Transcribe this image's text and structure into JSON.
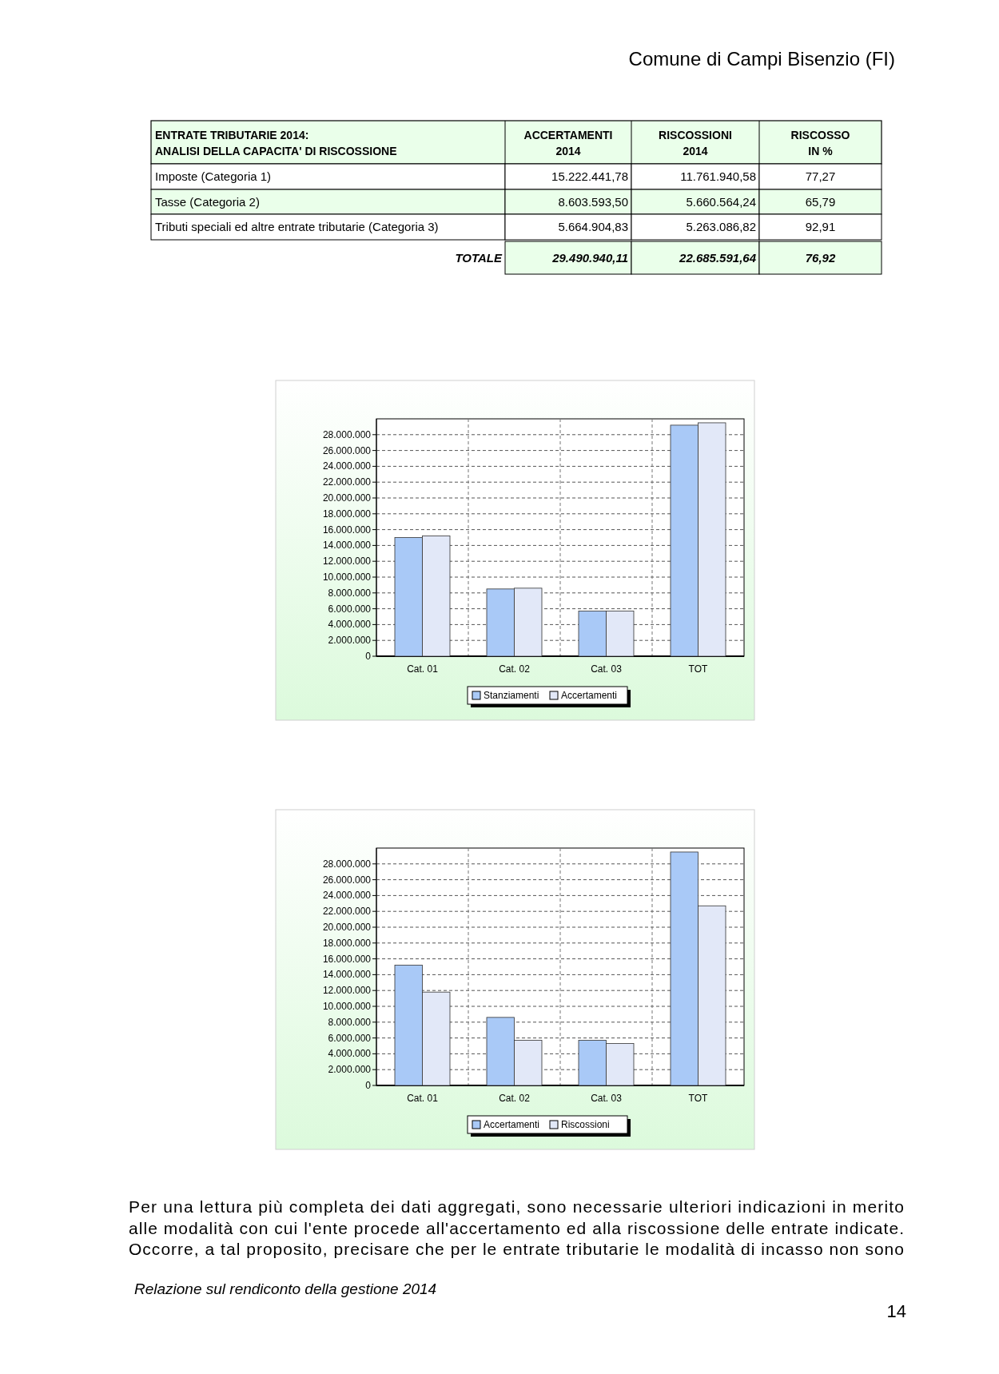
{
  "chart_data": [
    {
      "type": "other",
      "title": "ENTRATE  TRIBUTARIE 2014:\nANALISI DELLA CAPACITA' DI RISCOSSIONE",
      "categories": [
        "ACCERTAMENTI\n2014",
        "RISCOSSIONI\n2014",
        "RISCOSSO\nIN %"
      ],
      "y_categories": [
        "Imposte (Categoria 1)",
        "Tasse (Categoria 2)",
        "Tributi speciali ed altre entrate tributarie (Categoria 3)",
        "TOTALE"
      ],
      "cell_labels": [
        [
          "15.222.441,78",
          "11.761.940,58",
          "77,27"
        ],
        [
          "8.603.593,50",
          "5.660.564,24",
          "65,79"
        ],
        [
          "5.664.904,83",
          "5.263.086,82",
          "92,91"
        ],
        [
          "29.490.940,11",
          "22.685.591,64",
          "76,92"
        ]
      ],
      "annotations": [
        "Comune di Campi Bisenzio (FI)",
        "Per una lettura più completa dei dati aggregati, sono necessarie ulteriori indicazioni in merito",
        "alle modalità con cui l'ente procede all'accertamento ed alla riscossione delle entrate indicate.",
        "Occorre, a tal proposito, precisare che per le entrate tributarie le modalità di incasso non sono",
        "Relazione sul rendiconto della gestione 2014",
        "14"
      ]
    },
    {
      "type": "bar",
      "categories": [
        "Cat. 01",
        "Cat. 02",
        "Cat. 03",
        "TOT"
      ],
      "ylim": [
        0,
        30000000
      ],
      "yticks": [
        0,
        {
          "value": 2000000,
          "label": "2.000.000"
        },
        {
          "value": 4000000,
          "label": "4.000.000"
        },
        {
          "value": 6000000,
          "label": "6.000.000"
        },
        {
          "value": 8000000,
          "label": "8.000.000"
        },
        {
          "value": 10000000,
          "label": "10.000.000"
        },
        {
          "value": 12000000,
          "label": "12.000.000"
        },
        {
          "value": 14000000,
          "label": "14.000.000"
        },
        {
          "value": 16000000,
          "label": "16.000.000"
        },
        {
          "value": 18000000,
          "label": "18.000.000"
        },
        {
          "value": 20000000,
          "label": "20.000.000"
        },
        {
          "value": 22000000,
          "label": "22.000.000"
        },
        {
          "value": 24000000,
          "label": "24.000.000"
        },
        {
          "value": 26000000,
          "label": "26.000.000"
        },
        {
          "value": 28000000,
          "label": "28.000.000"
        }
      ],
      "grid": true,
      "legend": "bottom",
      "series": [
        {
          "name": "Stanziamenti",
          "color": "#a9c9f7",
          "values": [
            15000000,
            8500000,
            5700000,
            29200000
          ]
        },
        {
          "name": "Accertamenti",
          "color": "#e2e8f8",
          "values": [
            15200000,
            8600000,
            5700000,
            29500000
          ]
        }
      ]
    },
    {
      "type": "bar",
      "categories": [
        "Cat. 01",
        "Cat. 02",
        "Cat. 03",
        "TOT"
      ],
      "ylim": [
        0,
        30000000
      ],
      "yticks": [
        0,
        {
          "value": 2000000,
          "label": "2.000.000"
        },
        {
          "value": 4000000,
          "label": "4.000.000"
        },
        {
          "value": 6000000,
          "label": "6.000.000"
        },
        {
          "value": 8000000,
          "label": "8.000.000"
        },
        {
          "value": 10000000,
          "label": "10.000.000"
        },
        {
          "value": 12000000,
          "label": "12.000.000"
        },
        {
          "value": 14000000,
          "label": "14.000.000"
        },
        {
          "value": 16000000,
          "label": "16.000.000"
        },
        {
          "value": 18000000,
          "label": "18.000.000"
        },
        {
          "value": 20000000,
          "label": "20.000.000"
        },
        {
          "value": 22000000,
          "label": "22.000.000"
        },
        {
          "value": 24000000,
          "label": "24.000.000"
        },
        {
          "value": 26000000,
          "label": "26.000.000"
        },
        {
          "value": 28000000,
          "label": "28.000.000"
        }
      ],
      "grid": true,
      "legend": "bottom",
      "series": [
        {
          "name": "Accertamenti",
          "color": "#a9c9f7",
          "values": [
            15200000,
            8600000,
            5700000,
            29500000
          ]
        },
        {
          "name": "Riscossioni",
          "color": "#e2e8f8",
          "values": [
            11800000,
            5700000,
            5300000,
            22700000
          ]
        }
      ]
    }
  ]
}
